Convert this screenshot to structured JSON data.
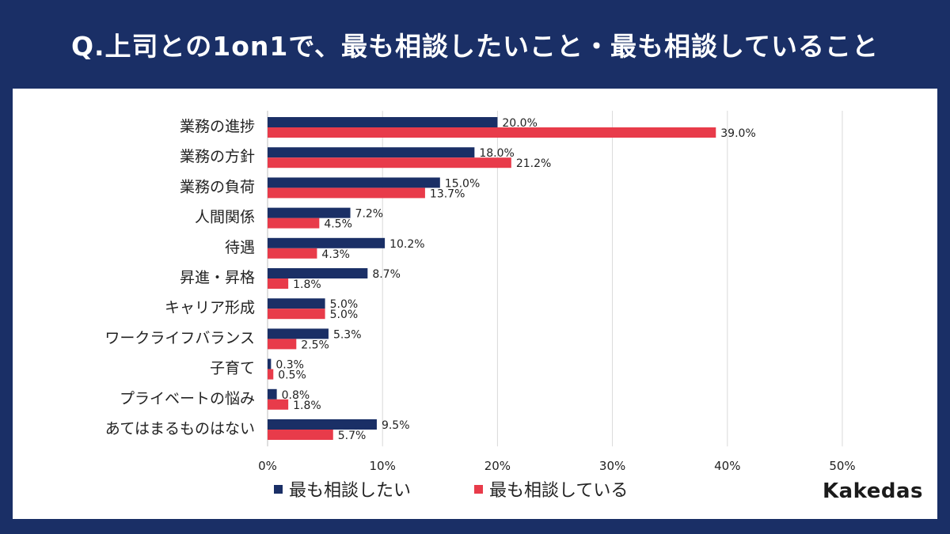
{
  "title": "Q.上司との1on1で、最も相談したいこと・最も相談していること",
  "brand": "Kakedas",
  "colors": {
    "series1": "#1a2f66",
    "series2": "#e83b4a",
    "grid": "#d9d9d9"
  },
  "chart_data": {
    "type": "bar",
    "orientation": "horizontal",
    "title": "Q.上司との1on1で、最も相談したいこと・最も相談していること",
    "categories": [
      "業務の進捗",
      "業務の方針",
      "業務の負荷",
      "人間関係",
      "待遇",
      "昇進・昇格",
      "キャリア形成",
      "ワークライフバランス",
      "子育て",
      "プライベートの悩み",
      "あてはまるものはない"
    ],
    "series": [
      {
        "name": "最も相談したい",
        "values": [
          20.0,
          18.0,
          15.0,
          7.2,
          10.2,
          8.7,
          5.0,
          5.3,
          0.3,
          0.8,
          9.5
        ]
      },
      {
        "name": "最も相談している",
        "values": [
          39.0,
          21.2,
          13.7,
          4.5,
          4.3,
          1.8,
          5.0,
          2.5,
          0.5,
          1.8,
          5.7
        ]
      }
    ],
    "xlim": [
      0,
      50
    ],
    "xticks": [
      "0%",
      "10%",
      "20%",
      "30%",
      "40%",
      "50%"
    ],
    "value_format": "%",
    "grid": true,
    "legend_position": "bottom"
  }
}
